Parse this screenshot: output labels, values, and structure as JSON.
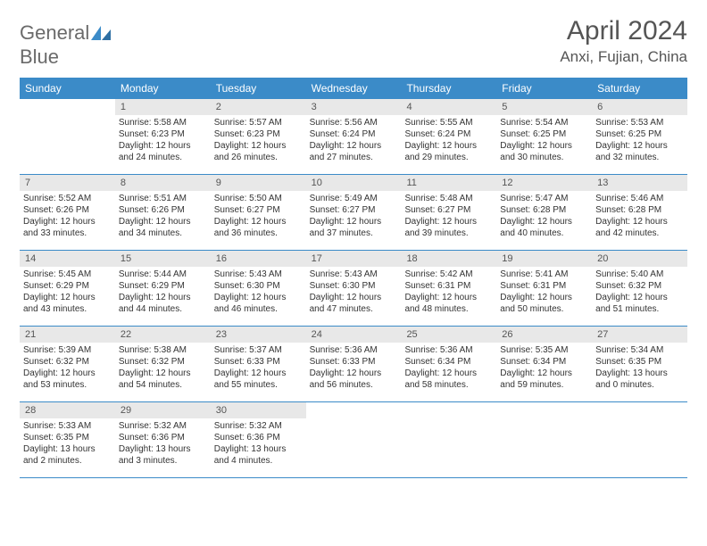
{
  "logo": {
    "word1": "General",
    "word2": "Blue"
  },
  "title": "April 2024",
  "location": "Anxi, Fujian, China",
  "colors": {
    "header_bg": "#3b8bc8",
    "header_fg": "#ffffff",
    "daynum_bg": "#e8e8e8",
    "text": "#333333",
    "title": "#555555",
    "rule": "#3b8bc8"
  },
  "dayNames": [
    "Sunday",
    "Monday",
    "Tuesday",
    "Wednesday",
    "Thursday",
    "Friday",
    "Saturday"
  ],
  "weeks": [
    [
      {
        "empty": true
      },
      {
        "n": "1",
        "sr": "Sunrise: 5:58 AM",
        "ss": "Sunset: 6:23 PM",
        "dl1": "Daylight: 12 hours",
        "dl2": "and 24 minutes."
      },
      {
        "n": "2",
        "sr": "Sunrise: 5:57 AM",
        "ss": "Sunset: 6:23 PM",
        "dl1": "Daylight: 12 hours",
        "dl2": "and 26 minutes."
      },
      {
        "n": "3",
        "sr": "Sunrise: 5:56 AM",
        "ss": "Sunset: 6:24 PM",
        "dl1": "Daylight: 12 hours",
        "dl2": "and 27 minutes."
      },
      {
        "n": "4",
        "sr": "Sunrise: 5:55 AM",
        "ss": "Sunset: 6:24 PM",
        "dl1": "Daylight: 12 hours",
        "dl2": "and 29 minutes."
      },
      {
        "n": "5",
        "sr": "Sunrise: 5:54 AM",
        "ss": "Sunset: 6:25 PM",
        "dl1": "Daylight: 12 hours",
        "dl2": "and 30 minutes."
      },
      {
        "n": "6",
        "sr": "Sunrise: 5:53 AM",
        "ss": "Sunset: 6:25 PM",
        "dl1": "Daylight: 12 hours",
        "dl2": "and 32 minutes."
      }
    ],
    [
      {
        "n": "7",
        "sr": "Sunrise: 5:52 AM",
        "ss": "Sunset: 6:26 PM",
        "dl1": "Daylight: 12 hours",
        "dl2": "and 33 minutes."
      },
      {
        "n": "8",
        "sr": "Sunrise: 5:51 AM",
        "ss": "Sunset: 6:26 PM",
        "dl1": "Daylight: 12 hours",
        "dl2": "and 34 minutes."
      },
      {
        "n": "9",
        "sr": "Sunrise: 5:50 AM",
        "ss": "Sunset: 6:27 PM",
        "dl1": "Daylight: 12 hours",
        "dl2": "and 36 minutes."
      },
      {
        "n": "10",
        "sr": "Sunrise: 5:49 AM",
        "ss": "Sunset: 6:27 PM",
        "dl1": "Daylight: 12 hours",
        "dl2": "and 37 minutes."
      },
      {
        "n": "11",
        "sr": "Sunrise: 5:48 AM",
        "ss": "Sunset: 6:27 PM",
        "dl1": "Daylight: 12 hours",
        "dl2": "and 39 minutes."
      },
      {
        "n": "12",
        "sr": "Sunrise: 5:47 AM",
        "ss": "Sunset: 6:28 PM",
        "dl1": "Daylight: 12 hours",
        "dl2": "and 40 minutes."
      },
      {
        "n": "13",
        "sr": "Sunrise: 5:46 AM",
        "ss": "Sunset: 6:28 PM",
        "dl1": "Daylight: 12 hours",
        "dl2": "and 42 minutes."
      }
    ],
    [
      {
        "n": "14",
        "sr": "Sunrise: 5:45 AM",
        "ss": "Sunset: 6:29 PM",
        "dl1": "Daylight: 12 hours",
        "dl2": "and 43 minutes."
      },
      {
        "n": "15",
        "sr": "Sunrise: 5:44 AM",
        "ss": "Sunset: 6:29 PM",
        "dl1": "Daylight: 12 hours",
        "dl2": "and 44 minutes."
      },
      {
        "n": "16",
        "sr": "Sunrise: 5:43 AM",
        "ss": "Sunset: 6:30 PM",
        "dl1": "Daylight: 12 hours",
        "dl2": "and 46 minutes."
      },
      {
        "n": "17",
        "sr": "Sunrise: 5:43 AM",
        "ss": "Sunset: 6:30 PM",
        "dl1": "Daylight: 12 hours",
        "dl2": "and 47 minutes."
      },
      {
        "n": "18",
        "sr": "Sunrise: 5:42 AM",
        "ss": "Sunset: 6:31 PM",
        "dl1": "Daylight: 12 hours",
        "dl2": "and 48 minutes."
      },
      {
        "n": "19",
        "sr": "Sunrise: 5:41 AM",
        "ss": "Sunset: 6:31 PM",
        "dl1": "Daylight: 12 hours",
        "dl2": "and 50 minutes."
      },
      {
        "n": "20",
        "sr": "Sunrise: 5:40 AM",
        "ss": "Sunset: 6:32 PM",
        "dl1": "Daylight: 12 hours",
        "dl2": "and 51 minutes."
      }
    ],
    [
      {
        "n": "21",
        "sr": "Sunrise: 5:39 AM",
        "ss": "Sunset: 6:32 PM",
        "dl1": "Daylight: 12 hours",
        "dl2": "and 53 minutes."
      },
      {
        "n": "22",
        "sr": "Sunrise: 5:38 AM",
        "ss": "Sunset: 6:32 PM",
        "dl1": "Daylight: 12 hours",
        "dl2": "and 54 minutes."
      },
      {
        "n": "23",
        "sr": "Sunrise: 5:37 AM",
        "ss": "Sunset: 6:33 PM",
        "dl1": "Daylight: 12 hours",
        "dl2": "and 55 minutes."
      },
      {
        "n": "24",
        "sr": "Sunrise: 5:36 AM",
        "ss": "Sunset: 6:33 PM",
        "dl1": "Daylight: 12 hours",
        "dl2": "and 56 minutes."
      },
      {
        "n": "25",
        "sr": "Sunrise: 5:36 AM",
        "ss": "Sunset: 6:34 PM",
        "dl1": "Daylight: 12 hours",
        "dl2": "and 58 minutes."
      },
      {
        "n": "26",
        "sr": "Sunrise: 5:35 AM",
        "ss": "Sunset: 6:34 PM",
        "dl1": "Daylight: 12 hours",
        "dl2": "and 59 minutes."
      },
      {
        "n": "27",
        "sr": "Sunrise: 5:34 AM",
        "ss": "Sunset: 6:35 PM",
        "dl1": "Daylight: 13 hours",
        "dl2": "and 0 minutes."
      }
    ],
    [
      {
        "n": "28",
        "sr": "Sunrise: 5:33 AM",
        "ss": "Sunset: 6:35 PM",
        "dl1": "Daylight: 13 hours",
        "dl2": "and 2 minutes."
      },
      {
        "n": "29",
        "sr": "Sunrise: 5:32 AM",
        "ss": "Sunset: 6:36 PM",
        "dl1": "Daylight: 13 hours",
        "dl2": "and 3 minutes."
      },
      {
        "n": "30",
        "sr": "Sunrise: 5:32 AM",
        "ss": "Sunset: 6:36 PM",
        "dl1": "Daylight: 13 hours",
        "dl2": "and 4 minutes."
      },
      {
        "empty": true
      },
      {
        "empty": true
      },
      {
        "empty": true
      },
      {
        "empty": true
      }
    ]
  ]
}
